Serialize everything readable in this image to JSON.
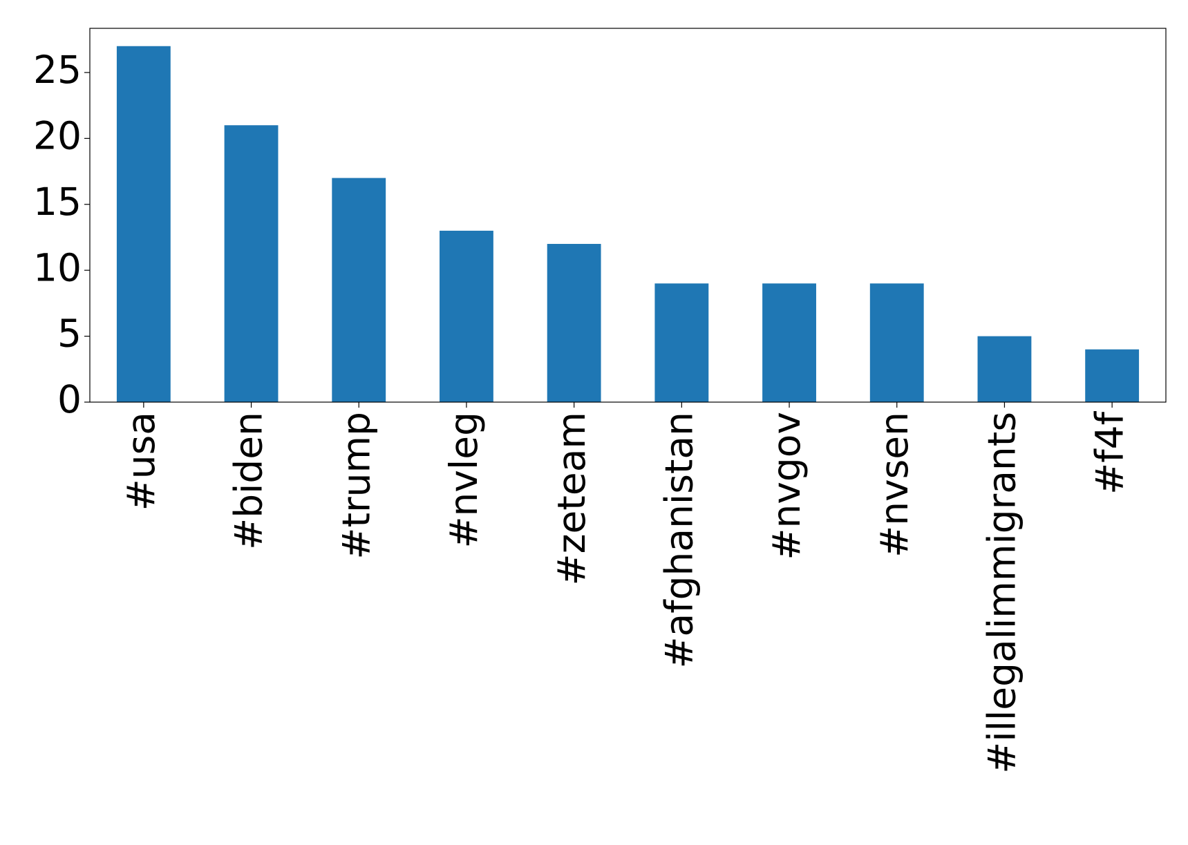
{
  "chart_data": {
    "type": "bar",
    "categories": [
      "#usa",
      "#biden",
      "#trump",
      "#nvleg",
      "#zeteam",
      "#afghanistan",
      "#nvgov",
      "#nvsen",
      "#illegalimmigrants",
      "#f4f"
    ],
    "values": [
      27,
      21,
      17,
      13,
      12,
      9,
      9,
      9,
      5,
      4
    ],
    "color": "#1f77b4",
    "ylim": [
      0,
      28.35
    ],
    "yticks": [
      0,
      5,
      10,
      15,
      20,
      25
    ],
    "grid": false
  }
}
